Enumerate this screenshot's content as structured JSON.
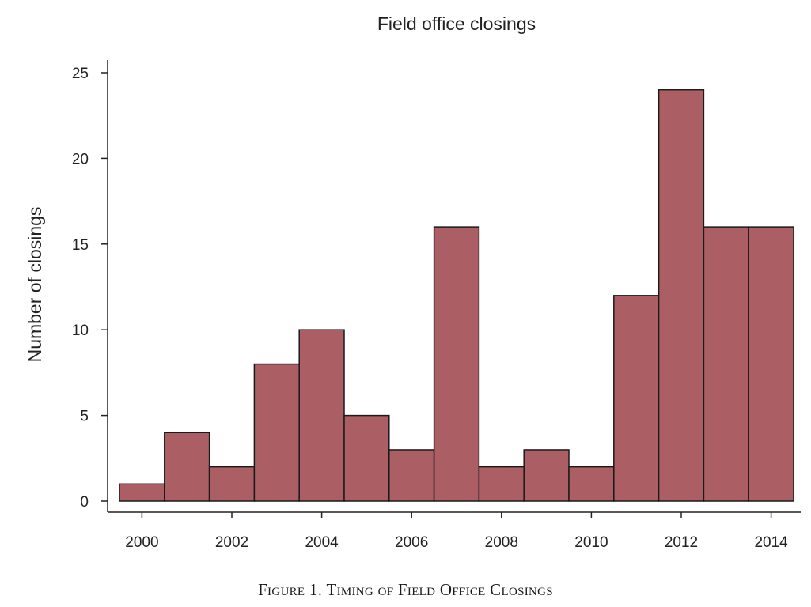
{
  "chart_data": {
    "type": "bar",
    "title": "Field office closings",
    "xlabel": "",
    "ylabel": "Number of closings",
    "x": [
      2000,
      2001,
      2002,
      2003,
      2004,
      2005,
      2006,
      2007,
      2008,
      2009,
      2010,
      2011,
      2012,
      2013,
      2014
    ],
    "values": [
      1,
      4,
      2,
      8,
      10,
      5,
      3,
      16,
      2,
      3,
      2,
      12,
      24,
      16,
      16
    ],
    "xlim": [
      1999.5,
      2014.5
    ],
    "ylim": [
      0,
      25
    ],
    "xticks": [
      "2000",
      "2002",
      "2004",
      "2006",
      "2008",
      "2010",
      "2012",
      "2014"
    ],
    "yticks": [
      "0",
      "5",
      "10",
      "15",
      "20",
      "25"
    ],
    "grid": false,
    "legend": "none",
    "bar_color": "#ab5f65",
    "bar_edge_color": "#1a1a1a"
  },
  "caption": "Figure 1. Timing of Field Office Closings"
}
